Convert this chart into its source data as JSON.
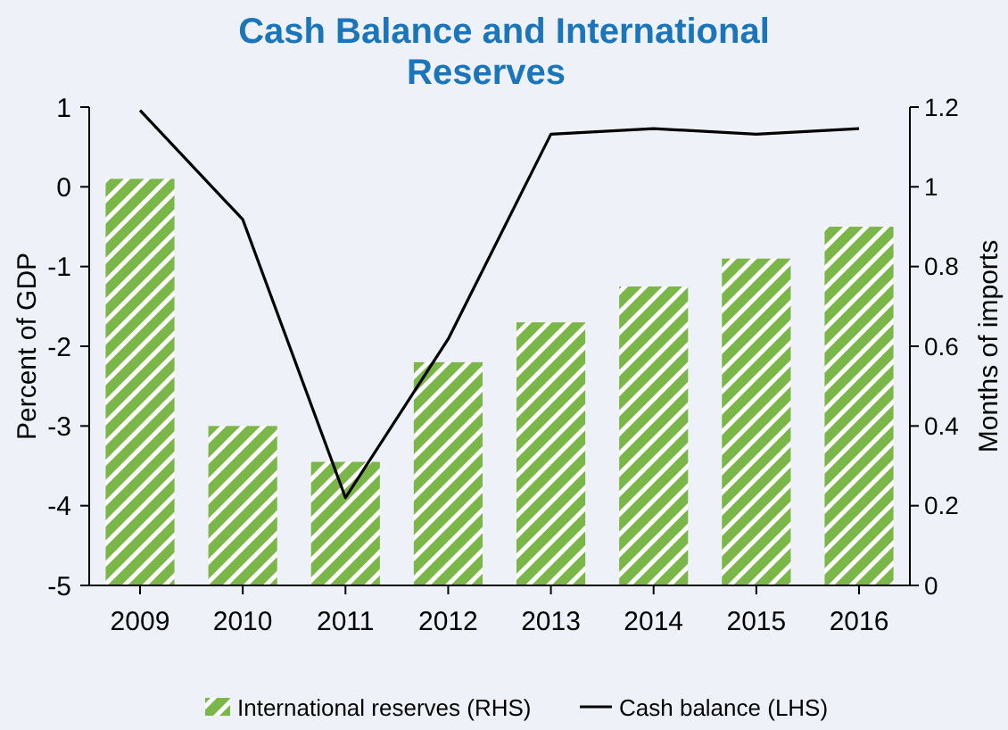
{
  "chart_data": {
    "type": "bar",
    "title": "Cash Balance and International Reserves",
    "ylabel": "Percent of GDP",
    "y2label": "Months of imports",
    "categories": [
      "2009",
      "2010",
      "2011",
      "2012",
      "2013",
      "2014",
      "2015",
      "2016"
    ],
    "series": [
      {
        "name": "International reserves (RHS)",
        "axis": "y2",
        "color": "#7ab648",
        "values": [
          1.02,
          0.4,
          0.31,
          0.56,
          0.66,
          0.75,
          0.82,
          0.9
        ]
      },
      {
        "name": "Cash balance (LHS)",
        "type": "line",
        "color": "#000000",
        "values": [
          0.96,
          -0.41,
          -3.9,
          -1.91,
          0.66,
          0.73,
          0.66,
          0.73
        ]
      }
    ],
    "ylim": [
      -5,
      1
    ],
    "yticks": [
      -5,
      -4,
      -3,
      -2,
      -1,
      0,
      1
    ],
    "y2lim": [
      0,
      1.2
    ],
    "y2ticks": [
      0,
      0.2,
      0.4,
      0.6,
      0.8,
      1,
      1.2
    ],
    "grid": false,
    "legend": "bottom",
    "marker": "none",
    "line_style": "solid"
  }
}
